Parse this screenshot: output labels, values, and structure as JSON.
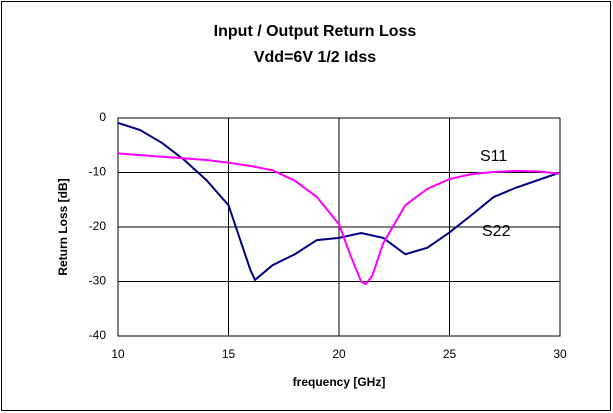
{
  "chart_data": {
    "type": "line",
    "title": "Input / Output Return Loss",
    "subtitle": "Vdd=6V 1/2 Idss",
    "xlabel": "frequency [GHz]",
    "ylabel": "Return Loss [dB]",
    "xlim": [
      10,
      30
    ],
    "xticks": [
      10,
      15,
      20,
      25,
      30
    ],
    "ylim": [
      -40,
      0
    ],
    "yticks": [
      -40,
      -30,
      -20,
      -10,
      0
    ],
    "grid": true,
    "series": [
      {
        "name": "S22",
        "color": "#000080",
        "x": [
          10,
          11,
          12,
          13,
          14,
          15,
          16,
          16.2,
          17,
          18,
          19,
          20,
          21,
          22,
          23,
          24,
          25,
          26,
          27,
          28,
          29,
          30
        ],
        "values": [
          -0.9,
          -2.2,
          -4.6,
          -7.7,
          -11.4,
          -16,
          -28,
          -29.7,
          -27,
          -25,
          -22.4,
          -22,
          -21.1,
          -22,
          -25,
          -23.8,
          -21,
          -17.8,
          -14.5,
          -12.8,
          -11.4,
          -10
        ]
      },
      {
        "name": "S11",
        "color": "#ff00ff",
        "x": [
          10,
          12,
          14,
          15,
          16,
          17,
          18,
          19,
          20,
          20.5,
          21,
          21.2,
          21.5,
          22,
          23,
          24,
          25,
          26,
          27,
          28,
          29,
          30
        ],
        "values": [
          -6.5,
          -7.1,
          -7.7,
          -8.2,
          -8.8,
          -9.6,
          -11.5,
          -14.5,
          -19.5,
          -25,
          -30,
          -30.5,
          -29,
          -23,
          -16,
          -13,
          -11.2,
          -10.3,
          -9.9,
          -9.7,
          -9.8,
          -10.2
        ]
      }
    ]
  }
}
